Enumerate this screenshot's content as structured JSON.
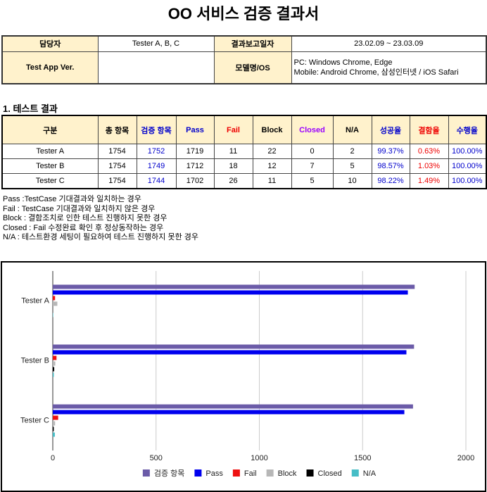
{
  "header": {
    "title": "OO 서비스 검증 결과서"
  },
  "info": {
    "manager_label": "담당자",
    "manager": "Tester A, B, C",
    "date_label": "결과보고일자",
    "date": "23.02.09 ~ 23.03.09",
    "app_version_label": "Test App Ver.",
    "os_label": "모델명/OS",
    "os_lines": [
      "PC: Windows Chrome, Edge",
      "Mobile: Android Chrome, 삼성인터넷 / iOS Safari"
    ]
  },
  "section_title": "1. 테스트 결과",
  "results_table": {
    "header": [
      "구분",
      "총 항목",
      "검증 항목",
      "Pass",
      "Fail",
      "Block",
      "Closed",
      "N/A",
      "성공율",
      "결함율",
      "수행율"
    ],
    "rows": [
      [
        "Tester A",
        "1754",
        "1752",
        "1719",
        "11",
        "22",
        "0",
        "2",
        "99.37%",
        "0.63%",
        "100.00%"
      ],
      [
        "Tester B",
        "1754",
        "1749",
        "1712",
        "18",
        "12",
        "7",
        "5",
        "98.57%",
        "1.03%",
        "100.00%"
      ],
      [
        "Tester C",
        "1754",
        "1744",
        "1702",
        "26",
        "11",
        "5",
        "10",
        "98.22%",
        "1.49%",
        "100.00%"
      ]
    ]
  },
  "notes": [
    "Pass :TestCase 기대결과와 일치하는 경우",
    "Fail : TestCase 기대결과와 일치하지 않은 경우",
    "Block : 결함조치로 인한 테스트 진행하지 못한 경우",
    "Closed : Fail 수정완료 확인 후 정상동작하는 경우",
    "N/A : 테스트환경 세팅이 필요하여 테스트 진행하지 못한 경우"
  ],
  "chart_data": {
    "type": "bar",
    "orientation": "horizontal",
    "categories": [
      "Tester A",
      "Tester B",
      "Tester C"
    ],
    "series": [
      {
        "name": "검증 항목",
        "color": "#6b5ba8",
        "values": [
          1752,
          1749,
          1744
        ]
      },
      {
        "name": "Pass",
        "color": "#0000ee",
        "values": [
          1719,
          1712,
          1702
        ]
      },
      {
        "name": "Fail",
        "color": "#ee1111",
        "values": [
          11,
          18,
          26
        ]
      },
      {
        "name": "Block",
        "color": "#b7b7b7",
        "values": [
          22,
          12,
          11
        ]
      },
      {
        "name": "Closed",
        "color": "#000000",
        "values": [
          0,
          7,
          5
        ]
      },
      {
        "name": "N/A",
        "color": "#46bdc6",
        "values": [
          2,
          5,
          10
        ]
      }
    ],
    "xlim": [
      0,
      2000
    ],
    "xticks": [
      0,
      500,
      1000,
      1500,
      2000
    ],
    "grid": true,
    "legend": "bottom"
  }
}
